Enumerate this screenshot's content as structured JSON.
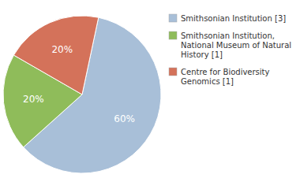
{
  "chart_data": {
    "type": "pie",
    "categories": [
      "Smithsonian Institution [3]",
      "Smithsonian Institution,\nNational Museum of Natural\nHistory [1]",
      "Centre for Biodiversity\nGenomics [1]"
    ],
    "values": [
      60,
      20,
      20
    ],
    "value_labels": [
      "60%",
      "20%",
      "20%"
    ],
    "colors": [
      "#a8bfd8",
      "#8fbc5a",
      "#d4725a"
    ],
    "data_labels": true,
    "legend": "right"
  }
}
